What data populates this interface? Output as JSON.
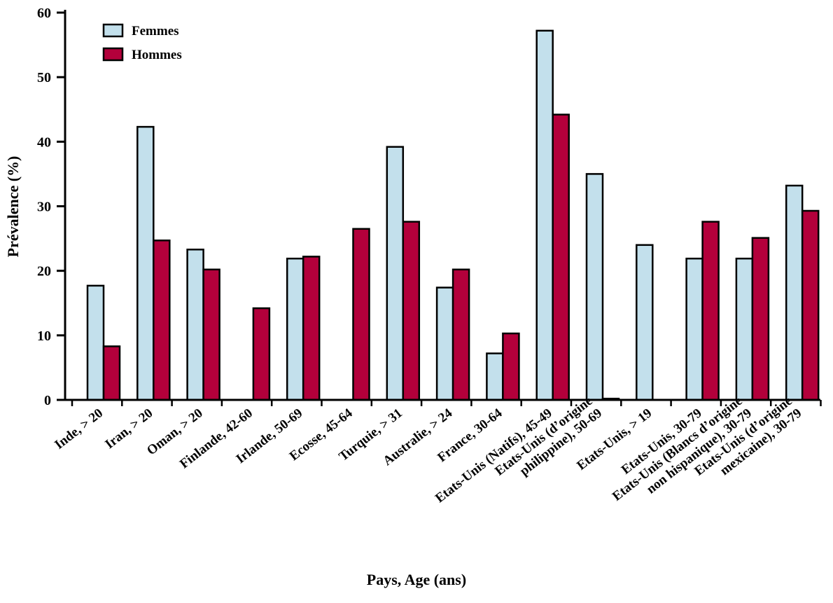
{
  "chart_data": {
    "type": "bar",
    "title": "",
    "xlabel": "Pays, Age (ans)",
    "ylabel": "Prévalence (%)",
    "ylim": [
      0,
      60
    ],
    "yticks": [
      0,
      10,
      20,
      30,
      40,
      50,
      60
    ],
    "grid": false,
    "legend_position": "top-left",
    "categories": [
      [
        "Inde, > 20"
      ],
      [
        "Iran, > 20"
      ],
      [
        "Oman, > 20"
      ],
      [
        "Finlande, 42-60"
      ],
      [
        "Irlande, 50-69"
      ],
      [
        "Ecosse, 45-64"
      ],
      [
        "Turquie, > 31"
      ],
      [
        "Australie, > 24"
      ],
      [
        "France, 30-64"
      ],
      [
        "Etats-Unis (Natifs), 45-49"
      ],
      [
        "Etats-Unis (d’origine",
        "philippine), 50-69"
      ],
      [
        "Etats-Unis, > 19"
      ],
      [
        "Etats-Unis, 30-79"
      ],
      [
        "Etats-Unis (Blancs d’origine",
        "non hispanique), 30-79"
      ],
      [
        "Etats-Unis (d’origine",
        "mexicaine), 30-79"
      ]
    ],
    "series": [
      {
        "name": "Femmes",
        "color": "#c3e0ec",
        "values": [
          17.7,
          42.3,
          23.3,
          0,
          21.9,
          0,
          39.2,
          17.4,
          7.2,
          57.2,
          35.0,
          24.0,
          21.9,
          21.9,
          33.2
        ]
      },
      {
        "name": "Hommes",
        "color": "#b3003b",
        "values": [
          8.3,
          24.7,
          20.2,
          14.2,
          22.2,
          26.5,
          27.6,
          20.2,
          10.3,
          44.2,
          0.2,
          0,
          27.6,
          25.1,
          29.3
        ]
      }
    ]
  }
}
